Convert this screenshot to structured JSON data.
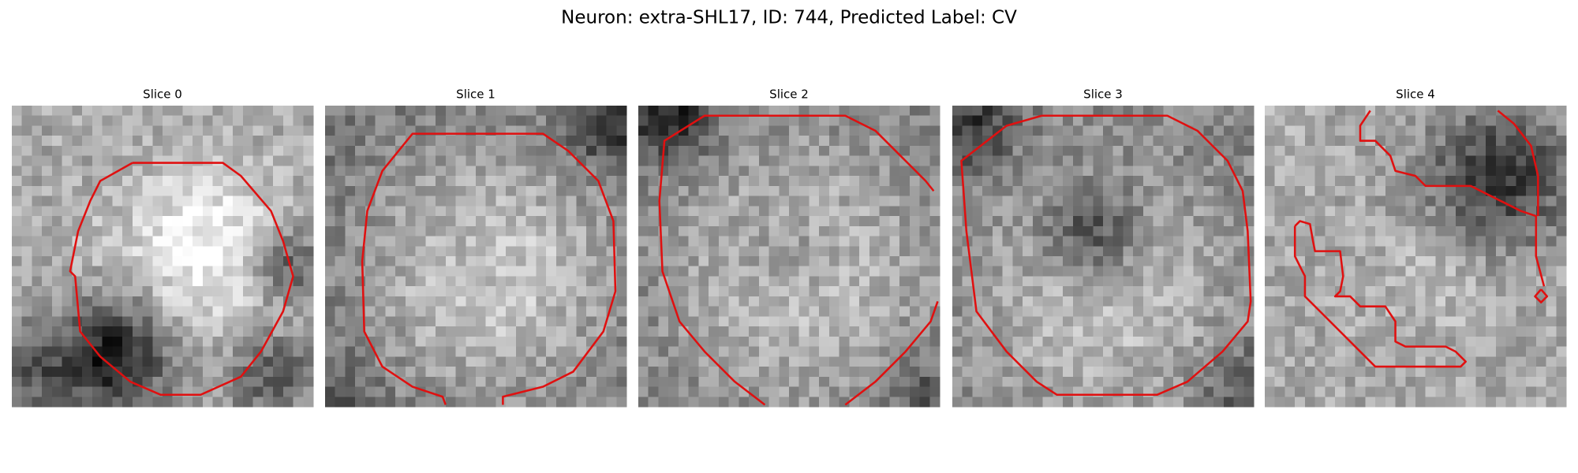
{
  "title": "Neuron: extra-SHL17, ID: 744, Predicted Label: CV",
  "panels": [
    {
      "title": "Slice 0"
    },
    {
      "title": "Slice 1"
    },
    {
      "title": "Slice 2"
    },
    {
      "title": "Slice 3"
    },
    {
      "title": "Slice 4"
    }
  ]
}
